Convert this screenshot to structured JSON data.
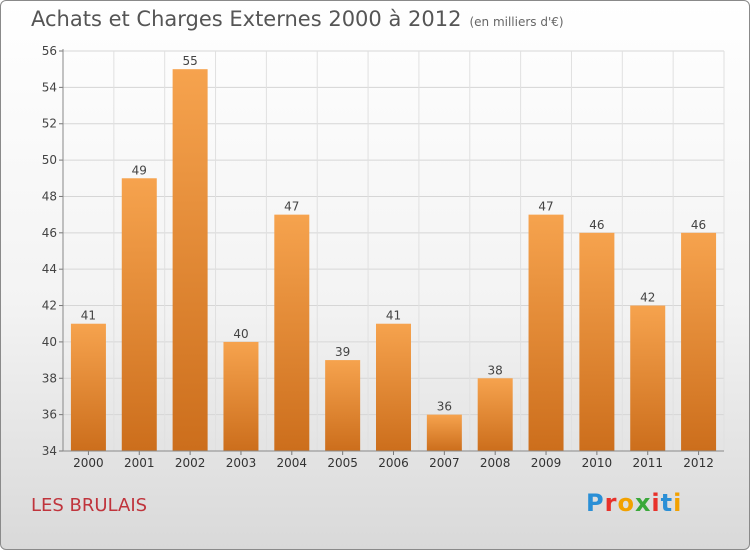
{
  "header": {
    "title": "Achats et Charges Externes 2000 à 2012",
    "subtitle": "(en milliers d'€)"
  },
  "footer": {
    "region": "LES BRULAIS",
    "logo": "Proxiti"
  },
  "colors": {
    "bar_light": "#f6a34e",
    "bar_dark": "#cc6e1c",
    "region_text": "#c0343c"
  },
  "chart_data": {
    "type": "bar",
    "title": "Achats et Charges Externes 2000 à 2012",
    "subtitle": "(en milliers d'€)",
    "categories": [
      "2000",
      "2001",
      "2002",
      "2003",
      "2004",
      "2005",
      "2006",
      "2007",
      "2008",
      "2009",
      "2010",
      "2011",
      "2012"
    ],
    "values": [
      41,
      49,
      55,
      40,
      47,
      39,
      41,
      36,
      38,
      47,
      46,
      42,
      46
    ],
    "ylim": [
      34,
      56
    ],
    "yticks": [
      34,
      36,
      38,
      40,
      42,
      44,
      46,
      48,
      50,
      52,
      54,
      56
    ],
    "grid": true,
    "data_labels": true
  }
}
